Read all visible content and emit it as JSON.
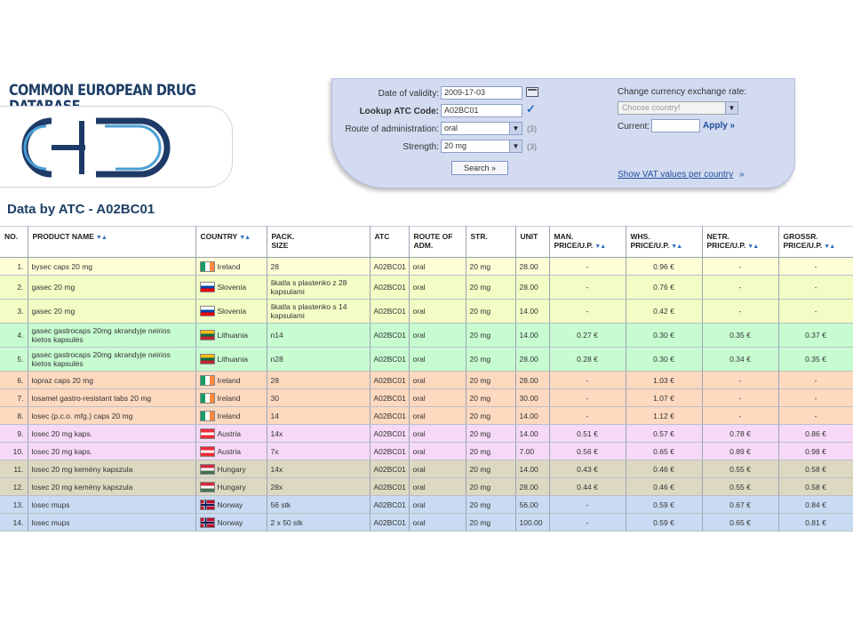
{
  "brand": {
    "title": "COMMON EUROPEAN DRUG DATABASE",
    "logo_icon": "cedd-logo-icon"
  },
  "filters": {
    "date_label": "Date of validity:",
    "date_value": "2009-17-03",
    "atc_label": "Lookup ATC Code:",
    "atc_value": "A02BC01",
    "route_label": "Route of administration:",
    "route_value": "oral",
    "route_count": "(3)",
    "strength_label": "Strength:",
    "strength_value": "20 mg",
    "strength_count": "(3)",
    "search_label": "Search »"
  },
  "currency": {
    "label": "Change currency exchange rate:",
    "select_placeholder": "Choose country!",
    "current_label": "Current:",
    "apply_label": "Apply »",
    "vat_link": "Show VAT values per country",
    "vat_arrow": "»"
  },
  "section_title": "Data by ATC - A02BC01",
  "table": {
    "headers": {
      "no": "NO.",
      "product": "PRODUCT NAME",
      "country": "COUNTRY",
      "pack_1": "PACK.",
      "pack_2": "SIZE",
      "atc": "ATC",
      "route_1": "ROUTE OF",
      "route_2": "ADM.",
      "str": "STR.",
      "unit": "UNIT",
      "man_1": "MAN.",
      "man_2": "PRICE/U.P.",
      "whs_1": "WHS.",
      "whs_2": "PRICE/U.P.",
      "netr_1": "NETR.",
      "netr_2": "PRICE/U.P.",
      "gross_1": "GROSSR.",
      "gross_2": "PRICE/U.P."
    },
    "row_colors": {
      "Ireland": "#fefed6",
      "Slovenia": "#f2fdc5",
      "Lithuania": "#c7fcd1",
      "Ireland_b": "#fdd9bf",
      "Austria": "#f6d9f6",
      "Hungary": "#ddd9c1",
      "Norway": "#c9dbf2"
    },
    "rows": [
      {
        "no": "1.",
        "product": "bysec caps 20 mg",
        "country": "Ireland",
        "flag": "ireland-flag-icon",
        "pack": "28",
        "atc": "A02BC01",
        "route": "oral",
        "str": "20 mg",
        "unit": "28.00",
        "man": "-",
        "whs": "0.96 €",
        "netr": "-",
        "gross": "-"
      },
      {
        "no": "2.",
        "product": "gasec 20 mg",
        "country": "Slovenia",
        "flag": "slovenia-flag-icon",
        "pack": "škatla s plastenko z 28 kapsulami",
        "atc": "A02BC01",
        "route": "oral",
        "str": "20 mg",
        "unit": "28.00",
        "man": "-",
        "whs": "0.76 €",
        "netr": "-",
        "gross": "-"
      },
      {
        "no": "3.",
        "product": "gasec 20 mg",
        "country": "Slovenia",
        "flag": "slovenia-flag-icon",
        "pack": "škatla s plastenko s 14 kapsulami",
        "atc": "A02BC01",
        "route": "oral",
        "str": "20 mg",
        "unit": "14.00",
        "man": "-",
        "whs": "0.42 €",
        "netr": "-",
        "gross": "-"
      },
      {
        "no": "4.",
        "product": "gasec gastrocaps 20mg skrandyje neirios kietos kapsulės",
        "country": "Lithuania",
        "flag": "lithuania-flag-icon",
        "pack": "n14",
        "atc": "A02BC01",
        "route": "oral",
        "str": "20 mg",
        "unit": "14.00",
        "man": "0.27 €",
        "whs": "0.30 €",
        "netr": "0.35 €",
        "gross": "0.37 €"
      },
      {
        "no": "5.",
        "product": "gasec gastrocaps 20mg skrandyje neirios kietos kapsulės",
        "country": "Lithuania",
        "flag": "lithuania-flag-icon",
        "pack": "n28",
        "atc": "A02BC01",
        "route": "oral",
        "str": "20 mg",
        "unit": "28.00",
        "man": "0.28 €",
        "whs": "0.30 €",
        "netr": "0.34 €",
        "gross": "0.35 €"
      },
      {
        "no": "6.",
        "product": "lopraz caps 20 mg",
        "country": "Ireland",
        "flag": "ireland-flag-icon",
        "pack": "28",
        "atc": "A02BC01",
        "route": "oral",
        "str": "20 mg",
        "unit": "28.00",
        "man": "-",
        "whs": "1.03 €",
        "netr": "-",
        "gross": "-"
      },
      {
        "no": "7.",
        "product": "losamel gastro-resistant tabs 20 mg",
        "country": "Ireland",
        "flag": "ireland-flag-icon",
        "pack": "30",
        "atc": "A02BC01",
        "route": "oral",
        "str": "20 mg",
        "unit": "30.00",
        "man": "-",
        "whs": "1.07 €",
        "netr": "-",
        "gross": "-"
      },
      {
        "no": "8.",
        "product": "losec (p.c.o. mfg.) caps 20 mg",
        "country": "Ireland",
        "flag": "ireland-flag-icon",
        "pack": "14",
        "atc": "A02BC01",
        "route": "oral",
        "str": "20 mg",
        "unit": "14.00",
        "man": "-",
        "whs": "1.12 €",
        "netr": "-",
        "gross": "-"
      },
      {
        "no": "9.",
        "product": "losec 20 mg kaps.",
        "country": "Austria",
        "flag": "austria-flag-icon",
        "pack": "14x",
        "atc": "A02BC01",
        "route": "oral",
        "str": "20 mg",
        "unit": "14.00",
        "man": "0.51 €",
        "whs": "0.57 €",
        "netr": "0.78 €",
        "gross": "0.86 €"
      },
      {
        "no": "10.",
        "product": "losec 20 mg kaps.",
        "country": "Austria",
        "flag": "austria-flag-icon",
        "pack": "7x",
        "atc": "A02BC01",
        "route": "oral",
        "str": "20 mg",
        "unit": "7.00",
        "man": "0.56 €",
        "whs": "0.65 €",
        "netr": "0.89 €",
        "gross": "0.98 €"
      },
      {
        "no": "11.",
        "product": "losec 20 mg kemény kapszula",
        "country": "Hungary",
        "flag": "hungary-flag-icon",
        "pack": "14x",
        "atc": "A02BC01",
        "route": "oral",
        "str": "20 mg",
        "unit": "14.00",
        "man": "0.43 €",
        "whs": "0.46 €",
        "netr": "0.55 €",
        "gross": "0.58 €"
      },
      {
        "no": "12.",
        "product": "losec 20 mg kemény kapszula",
        "country": "Hungary",
        "flag": "hungary-flag-icon",
        "pack": "28x",
        "atc": "A02BC01",
        "route": "oral",
        "str": "20 mg",
        "unit": "28.00",
        "man": "0.44 €",
        "whs": "0.46 €",
        "netr": "0.55 €",
        "gross": "0.58 €"
      },
      {
        "no": "13.",
        "product": "losec mups",
        "country": "Norway",
        "flag": "norway-flag-icon",
        "pack": "56 stk",
        "atc": "A02BC01",
        "route": "oral",
        "str": "20 mg",
        "unit": "56.00",
        "man": "-",
        "whs": "0.59 €",
        "netr": "0.67 €",
        "gross": "0.84 €"
      },
      {
        "no": "14.",
        "product": "losec mups",
        "country": "Norway",
        "flag": "norway-flag-icon",
        "pack": "2 x 50 stk",
        "atc": "A02BC01",
        "route": "oral",
        "str": "20 mg",
        "unit": "100.00",
        "man": "-",
        "whs": "0.59 €",
        "netr": "0.65 €",
        "gross": "0.81 €"
      }
    ]
  }
}
